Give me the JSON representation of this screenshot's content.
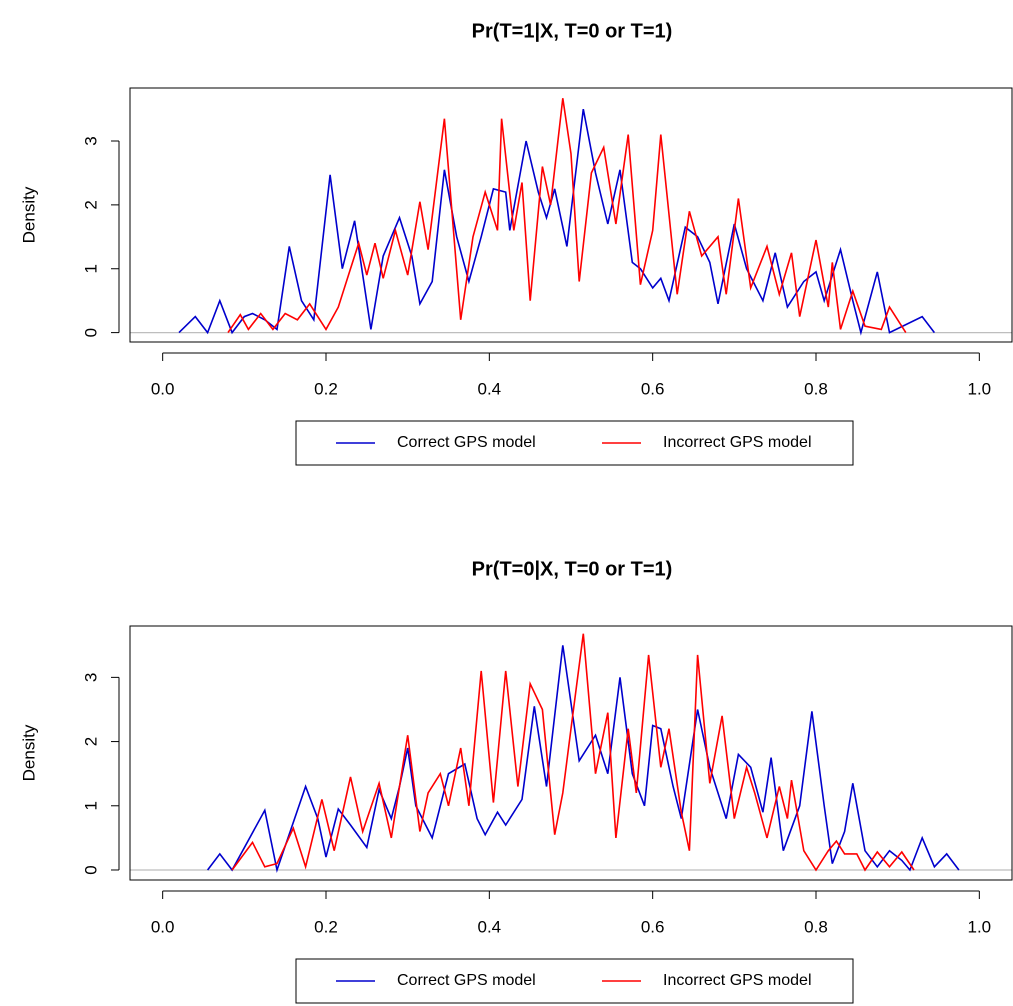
{
  "chart_data": [
    {
      "type": "line",
      "title": "Pr(T=1|X, T=0 or T=1)",
      "ylabel": "Density",
      "xlim": [
        -0.04,
        1.04
      ],
      "ylim": [
        -0.147,
        3.83
      ],
      "xticks": [
        {
          "value": 0,
          "label": "0.0"
        },
        0.2,
        0.4,
        0.6,
        0.8,
        {
          "value": 1,
          "label": "1.0"
        }
      ],
      "yticks": [
        0,
        1,
        2,
        3
      ],
      "hline": 0,
      "legend": "bottom",
      "series": [
        {
          "name": "Correct GPS model",
          "color": "#0000cd",
          "x": [
            0.02,
            0.04,
            0.055,
            0.07,
            0.085,
            0.1,
            0.11,
            0.125,
            0.14,
            0.155,
            0.17,
            0.185,
            0.205,
            0.22,
            0.235,
            0.255,
            0.27,
            0.29,
            0.305,
            0.315,
            0.33,
            0.345,
            0.36,
            0.375,
            0.39,
            0.405,
            0.42,
            0.425,
            0.445,
            0.46,
            0.47,
            0.48,
            0.495,
            0.515,
            0.53,
            0.545,
            0.56,
            0.575,
            0.585,
            0.6,
            0.61,
            0.62,
            0.64,
            0.655,
            0.67,
            0.68,
            0.7,
            0.715,
            0.735,
            0.75,
            0.765,
            0.785,
            0.8,
            0.81,
            0.83,
            0.845,
            0.855,
            0.875,
            0.89,
            0.93,
            0.945
          ],
          "values": [
            0,
            0.25,
            0,
            0.5,
            0,
            0.25,
            0.3,
            0.2,
            0.05,
            1.35,
            0.5,
            0.2,
            2.47,
            1.0,
            1.75,
            0.05,
            1.2,
            1.8,
            1.2,
            0.45,
            0.8,
            2.55,
            1.5,
            0.8,
            1.5,
            2.25,
            2.2,
            1.6,
            3.0,
            2.2,
            1.8,
            2.25,
            1.35,
            3.5,
            2.5,
            1.7,
            2.55,
            1.1,
            1.0,
            0.7,
            0.85,
            0.5,
            1.65,
            1.5,
            1.1,
            0.45,
            1.7,
            1.0,
            0.5,
            1.25,
            0.4,
            0.8,
            0.95,
            0.5,
            1.3,
            0.5,
            0,
            0.95,
            0,
            0.25,
            0
          ]
        },
        {
          "name": "Incorrect GPS model",
          "color": "#ff0000",
          "x": [
            0.08,
            0.095,
            0.105,
            0.12,
            0.135,
            0.15,
            0.165,
            0.18,
            0.2,
            0.215,
            0.23,
            0.24,
            0.25,
            0.26,
            0.27,
            0.285,
            0.3,
            0.315,
            0.325,
            0.345,
            0.365,
            0.38,
            0.395,
            0.41,
            0.415,
            0.43,
            0.44,
            0.45,
            0.465,
            0.475,
            0.49,
            0.5,
            0.51,
            0.525,
            0.54,
            0.555,
            0.57,
            0.585,
            0.6,
            0.61,
            0.63,
            0.645,
            0.66,
            0.68,
            0.69,
            0.705,
            0.72,
            0.74,
            0.755,
            0.77,
            0.78,
            0.8,
            0.815,
            0.82,
            0.83,
            0.845,
            0.86,
            0.88,
            0.89,
            0.91
          ],
          "values": [
            0,
            0.28,
            0.05,
            0.3,
            0.05,
            0.3,
            0.2,
            0.45,
            0.05,
            0.4,
            1.0,
            1.4,
            0.9,
            1.4,
            0.85,
            1.6,
            0.9,
            2.05,
            1.3,
            3.35,
            0.2,
            1.5,
            2.2,
            1.6,
            3.35,
            1.6,
            2.35,
            0.5,
            2.6,
            2.0,
            3.67,
            2.8,
            0.8,
            2.5,
            2.9,
            1.7,
            3.1,
            0.75,
            1.6,
            3.1,
            0.6,
            1.9,
            1.2,
            1.5,
            0.6,
            2.1,
            0.7,
            1.35,
            0.6,
            1.25,
            0.25,
            1.45,
            0.4,
            1.1,
            0.05,
            0.65,
            0.1,
            0.05,
            0.4,
            0
          ]
        }
      ]
    },
    {
      "type": "line",
      "title": "Pr(T=0|X, T=0 or T=1)",
      "ylabel": "Density",
      "xlim": [
        -0.04,
        1.04
      ],
      "ylim": [
        -0.156,
        3.8
      ],
      "xticks": [
        {
          "value": 0,
          "label": "0.0"
        },
        0.2,
        0.4,
        0.6,
        0.8,
        {
          "value": 1,
          "label": "1.0"
        }
      ],
      "yticks": [
        0,
        1,
        2,
        3
      ],
      "hline": 0,
      "legend": "bottom",
      "series": [
        {
          "name": "Correct GPS model",
          "color": "#0000cd",
          "x": [
            0.055,
            0.07,
            0.085,
            0.125,
            0.14,
            0.175,
            0.19,
            0.2,
            0.215,
            0.23,
            0.25,
            0.265,
            0.28,
            0.29,
            0.3,
            0.31,
            0.33,
            0.35,
            0.37,
            0.385,
            0.395,
            0.41,
            0.42,
            0.44,
            0.455,
            0.47,
            0.49,
            0.51,
            0.53,
            0.545,
            0.56,
            0.575,
            0.59,
            0.6,
            0.61,
            0.625,
            0.635,
            0.655,
            0.67,
            0.69,
            0.705,
            0.72,
            0.735,
            0.745,
            0.76,
            0.78,
            0.795,
            0.81,
            0.82,
            0.835,
            0.845,
            0.86,
            0.875,
            0.89,
            0.905,
            0.915,
            0.93,
            0.945,
            0.96,
            0.975
          ],
          "values": [
            0,
            0.25,
            0,
            0.93,
            0,
            1.3,
            0.8,
            0.2,
            0.95,
            0.7,
            0.35,
            1.25,
            0.8,
            1.3,
            1.9,
            1.0,
            0.5,
            1.5,
            1.65,
            0.8,
            0.55,
            0.9,
            0.7,
            1.1,
            2.55,
            1.3,
            3.5,
            1.7,
            2.1,
            1.5,
            3.0,
            1.5,
            1.0,
            2.25,
            2.2,
            1.3,
            0.8,
            2.5,
            1.6,
            0.8,
            1.8,
            1.6,
            0.9,
            1.75,
            0.3,
            1.0,
            2.47,
            1.0,
            0.1,
            0.6,
            1.35,
            0.3,
            0.05,
            0.3,
            0.15,
            0,
            0.5,
            0.05,
            0.25,
            0
          ]
        },
        {
          "name": "Incorrect GPS model",
          "color": "#ff0000",
          "x": [
            0.085,
            0.11,
            0.125,
            0.14,
            0.16,
            0.175,
            0.195,
            0.21,
            0.23,
            0.245,
            0.265,
            0.28,
            0.3,
            0.315,
            0.325,
            0.34,
            0.35,
            0.365,
            0.375,
            0.39,
            0.405,
            0.42,
            0.435,
            0.45,
            0.465,
            0.48,
            0.49,
            0.5,
            0.515,
            0.53,
            0.545,
            0.555,
            0.57,
            0.58,
            0.595,
            0.61,
            0.62,
            0.635,
            0.645,
            0.655,
            0.67,
            0.685,
            0.7,
            0.715,
            0.725,
            0.74,
            0.755,
            0.765,
            0.77,
            0.785,
            0.8,
            0.815,
            0.825,
            0.835,
            0.85,
            0.86,
            0.875,
            0.89,
            0.905,
            0.92
          ],
          "values": [
            0,
            0.43,
            0.05,
            0.1,
            0.65,
            0.05,
            1.1,
            0.3,
            1.45,
            0.6,
            1.35,
            0.5,
            2.1,
            0.6,
            1.2,
            1.5,
            1.0,
            1.9,
            1.0,
            3.1,
            1.05,
            3.1,
            1.3,
            2.9,
            2.5,
            0.55,
            1.2,
            2.2,
            3.68,
            1.5,
            2.45,
            0.5,
            2.2,
            1.2,
            3.35,
            1.6,
            2.2,
            0.9,
            0.3,
            3.35,
            1.35,
            2.4,
            0.8,
            1.6,
            1.2,
            0.5,
            1.3,
            0.8,
            1.4,
            0.3,
            0,
            0.3,
            0.45,
            0.25,
            0.25,
            0,
            0.28,
            0.05,
            0.28,
            0
          ]
        }
      ]
    }
  ]
}
